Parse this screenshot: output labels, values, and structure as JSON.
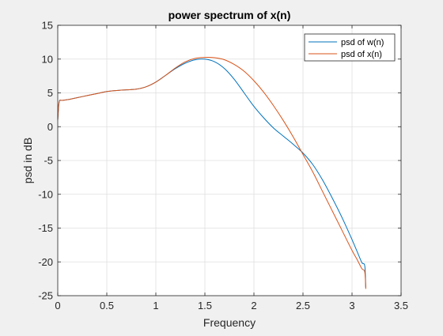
{
  "chart_data": {
    "type": "line",
    "title": "power spectrum of x(n)",
    "xlabel": "Frequency",
    "ylabel": "psd in dB",
    "xlim": [
      0,
      3.5
    ],
    "ylim": [
      -25,
      15
    ],
    "xticks": [
      0,
      0.5,
      1,
      1.5,
      2,
      2.5,
      3,
      3.5
    ],
    "xtick_labels": [
      "0",
      "0.5",
      "1",
      "1.5",
      "2",
      "2.5",
      "3",
      "3.5"
    ],
    "yticks": [
      -25,
      -20,
      -15,
      -10,
      -5,
      0,
      5,
      10,
      15
    ],
    "ytick_labels": [
      "-25",
      "-20",
      "-15",
      "-10",
      "-5",
      "0",
      "5",
      "10",
      "15"
    ],
    "grid": true,
    "legend_position": "top-right",
    "series": [
      {
        "name": "psd of w(n)",
        "color": "#0072BD",
        "x": [
          0,
          0.01,
          0.02,
          0.03,
          0.05,
          0.1,
          0.2,
          0.3,
          0.4,
          0.5,
          0.6,
          0.7,
          0.8,
          0.9,
          1.0,
          1.1,
          1.2,
          1.3,
          1.4,
          1.5,
          1.6,
          1.7,
          1.8,
          1.9,
          2.0,
          2.1,
          2.2,
          2.3,
          2.4,
          2.5,
          2.6,
          2.7,
          2.8,
          2.9,
          3.0,
          3.05,
          3.1,
          3.13,
          3.14
        ],
        "y": [
          1.0,
          3.2,
          3.9,
          3.9,
          3.9,
          4.0,
          4.3,
          4.6,
          4.9,
          5.2,
          5.35,
          5.45,
          5.55,
          5.9,
          6.6,
          7.6,
          8.6,
          9.4,
          9.9,
          10.0,
          9.6,
          8.6,
          7.0,
          5.0,
          3.0,
          1.3,
          -0.2,
          -1.4,
          -2.6,
          -3.9,
          -5.6,
          -7.9,
          -10.6,
          -13.5,
          -16.7,
          -18.4,
          -20.1,
          -20.6,
          -23.8
        ]
      },
      {
        "name": "psd of x(n)",
        "color": "#D95319",
        "x": [
          0,
          0.01,
          0.02,
          0.03,
          0.05,
          0.1,
          0.2,
          0.3,
          0.4,
          0.5,
          0.6,
          0.7,
          0.8,
          0.9,
          1.0,
          1.1,
          1.2,
          1.3,
          1.4,
          1.5,
          1.6,
          1.7,
          1.8,
          1.9,
          2.0,
          2.1,
          2.2,
          2.3,
          2.4,
          2.5,
          2.6,
          2.7,
          2.8,
          2.9,
          3.0,
          3.05,
          3.1,
          3.13,
          3.14
        ],
        "y": [
          1.0,
          3.2,
          3.9,
          3.9,
          3.9,
          4.0,
          4.3,
          4.6,
          4.9,
          5.2,
          5.35,
          5.45,
          5.55,
          5.9,
          6.6,
          7.6,
          8.7,
          9.6,
          10.1,
          10.25,
          10.2,
          9.9,
          9.2,
          8.2,
          6.8,
          5.1,
          3.1,
          0.9,
          -1.5,
          -4.1,
          -6.7,
          -9.6,
          -12.5,
          -15.4,
          -18.3,
          -19.6,
          -21.0,
          -21.5,
          -24.0
        ]
      }
    ]
  }
}
